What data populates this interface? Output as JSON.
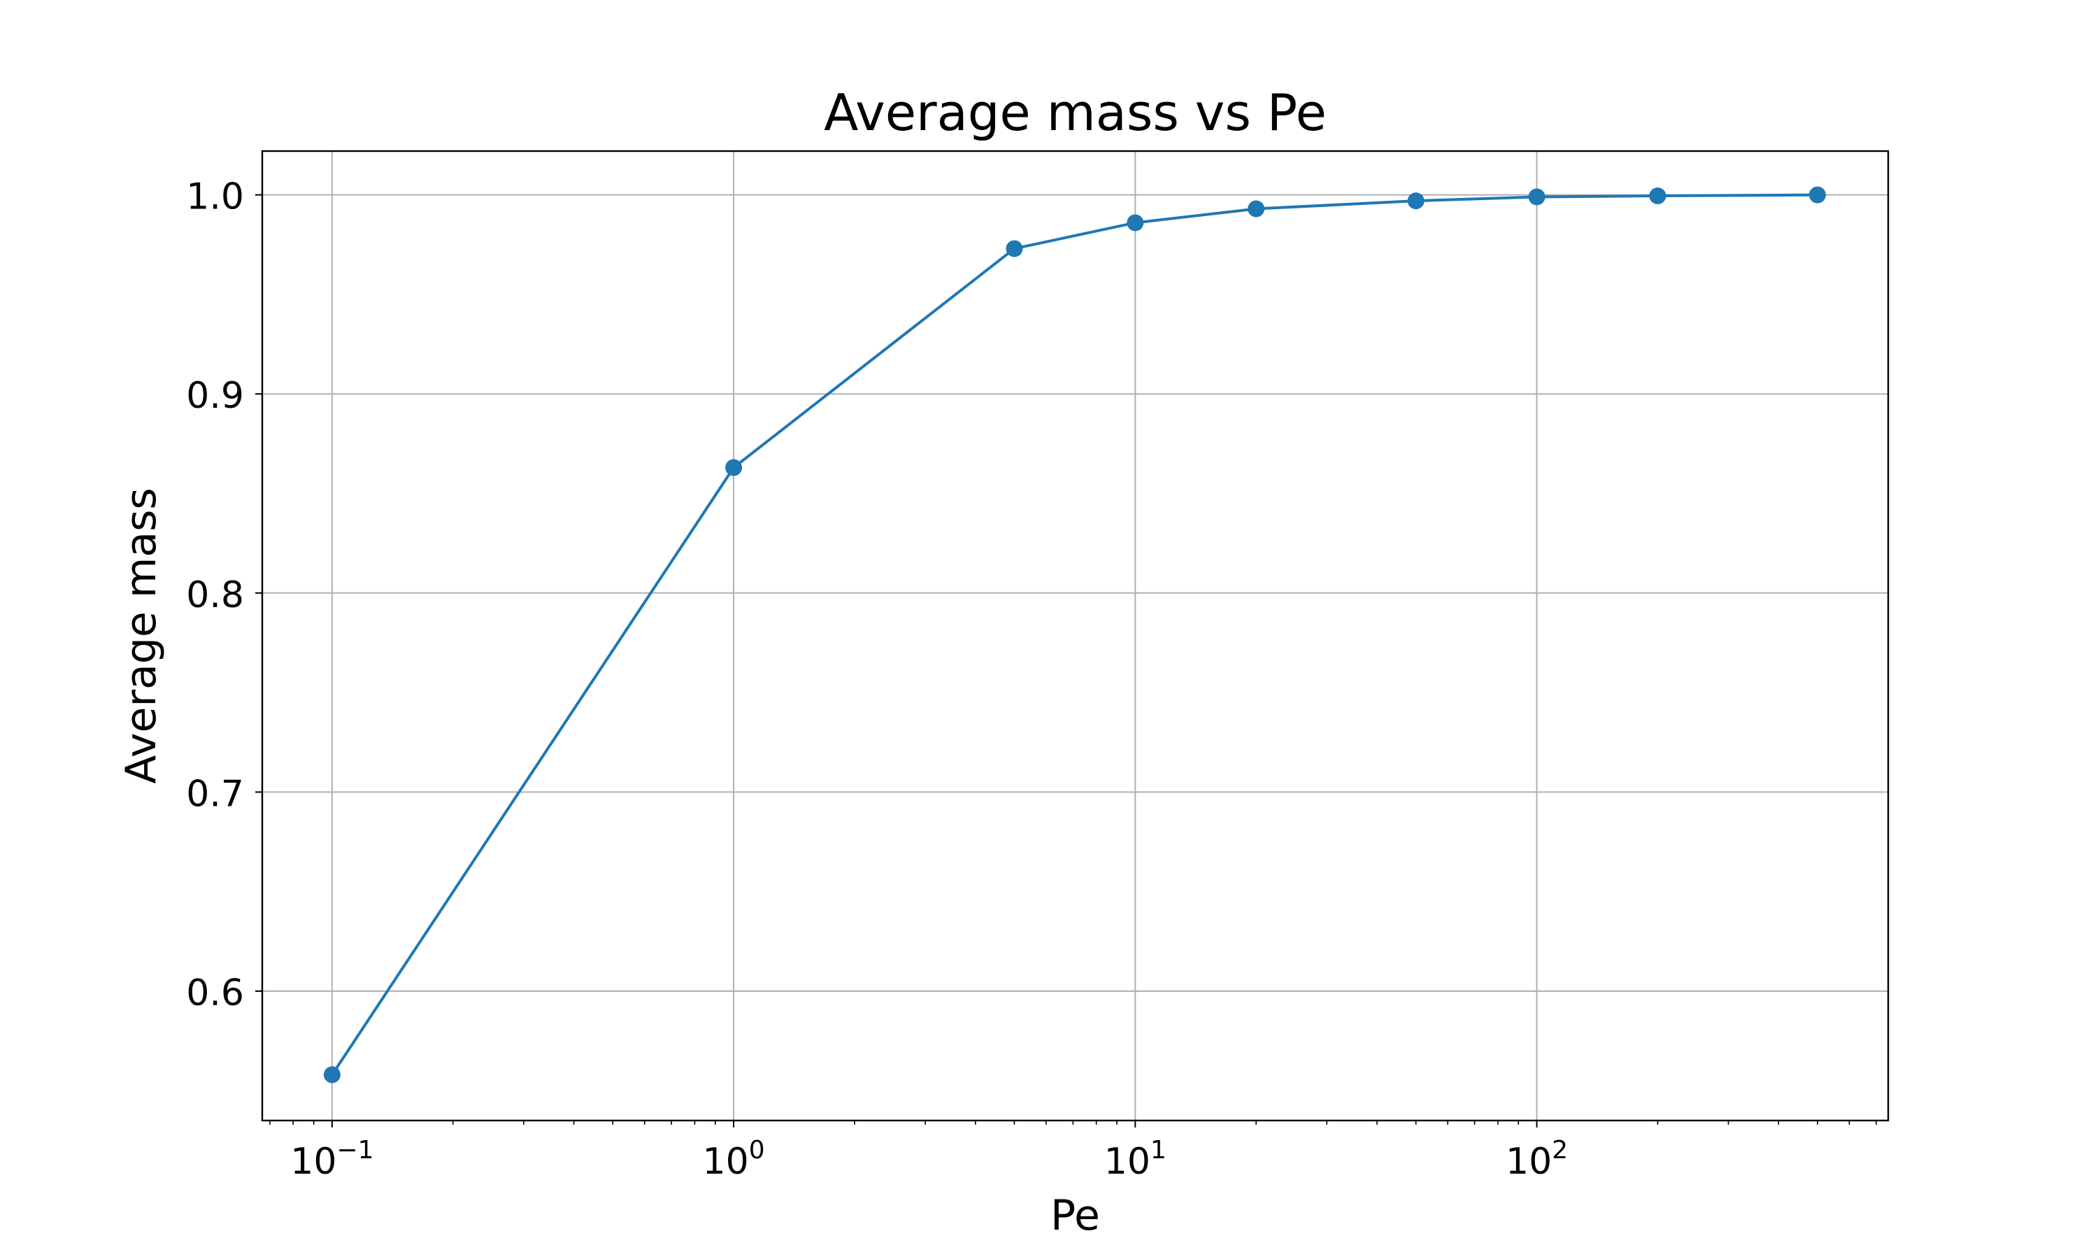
{
  "chart_data": {
    "type": "line",
    "title": "Average mass vs Pe",
    "xlabel": "Pe",
    "ylabel": "Average mass",
    "x_scale": "log",
    "xlim": [
      0.067,
      750
    ],
    "ylim": [
      0.535,
      1.022
    ],
    "grid": true,
    "color": "#1f77b4",
    "x_ticks": [
      {
        "value": 0.1,
        "base": "10",
        "exp": "−1"
      },
      {
        "value": 1,
        "base": "10",
        "exp": "0"
      },
      {
        "value": 10,
        "base": "10",
        "exp": "1"
      },
      {
        "value": 100,
        "base": "10",
        "exp": "2"
      }
    ],
    "y_ticks": [
      {
        "value": 0.6,
        "label": "0.6"
      },
      {
        "value": 0.7,
        "label": "0.7"
      },
      {
        "value": 0.8,
        "label": "0.8"
      },
      {
        "value": 0.9,
        "label": "0.9"
      },
      {
        "value": 1.0,
        "label": "1.0"
      }
    ],
    "x": [
      0.1,
      1,
      5,
      10,
      20,
      50,
      100,
      200,
      500
    ],
    "y": [
      0.558,
      0.863,
      0.973,
      0.986,
      0.993,
      0.997,
      0.999,
      0.9995,
      1.0
    ]
  }
}
